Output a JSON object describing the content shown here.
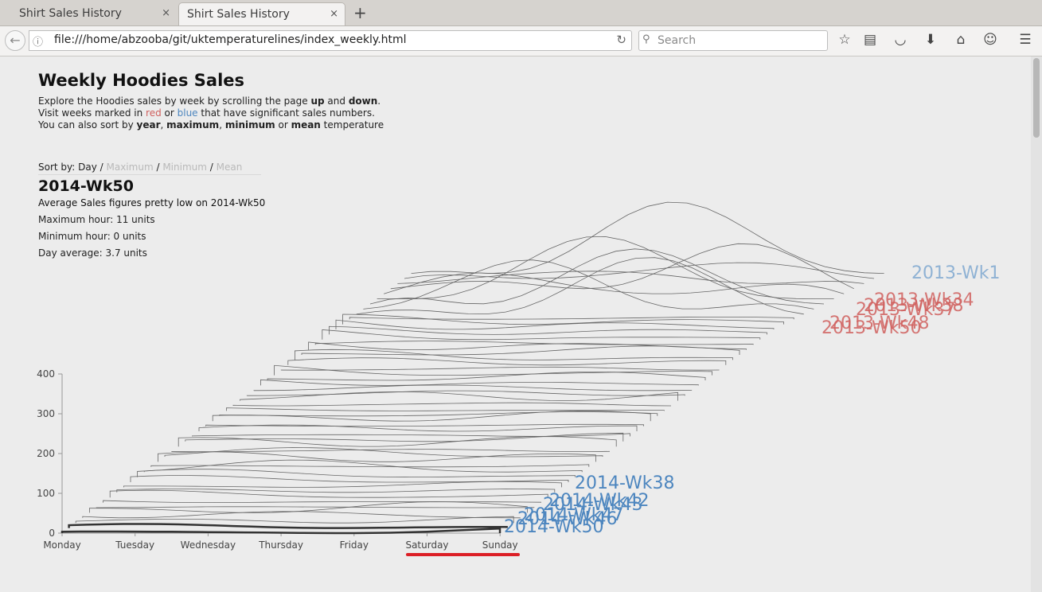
{
  "browser": {
    "tabs": [
      {
        "title": "Shirt Sales History",
        "close": "×"
      },
      {
        "title": "Shirt Sales History",
        "close": "×"
      }
    ],
    "new_tab": "+",
    "back": "←",
    "url": "file:///home/abzooba/git/uktemperaturelines/index_weekly.html",
    "search_placeholder": "Search",
    "icons": [
      "info-icon",
      "reload-icon",
      "search-icon",
      "bookmark-star-icon",
      "reading-list-icon",
      "pocket-icon",
      "download-icon",
      "home-icon",
      "smiley-icon",
      "menu-icon"
    ]
  },
  "page": {
    "title": "Weekly Hoodies Sales",
    "intro": {
      "l1_a": "Explore the Hoodies sales by week by scrolling the page ",
      "l1_b": "up",
      "l1_c": " and ",
      "l1_d": "down",
      "l1_e": ".",
      "l2_a": "Visit weeks marked in ",
      "l2_red": "red",
      "l2_b": " or ",
      "l2_blue": "blue",
      "l2_c": " that have significant sales numbers.",
      "l3_a": "You can also sort by ",
      "l3_year": "year",
      "l3_b": ", ",
      "l3_max": "maximum",
      "l3_c": ", ",
      "l3_min": "minimum",
      "l3_d": " or ",
      "l3_mean": "mean",
      "l3_e": " temperature"
    },
    "sort": {
      "label": "Sort by: ",
      "options": [
        "Day",
        "Maximum",
        "Minimum",
        "Mean"
      ],
      "active": "Day",
      "sep": " / "
    },
    "selected_week": {
      "title": "2014-Wk50",
      "description": "Average Sales figures pretty low on 2014-Wk50",
      "max": "Maximum hour: 11 units",
      "min": "Minimum hour: 0 units",
      "avg": "Day average: 3.7 units"
    },
    "colors": {
      "red": "#d0605e",
      "blue": "#4d86bf",
      "line": "#555555",
      "highlight": "#dc1f26"
    }
  },
  "chart_data": {
    "type": "line",
    "title": "",
    "xlabel": "",
    "ylabel": "",
    "categories": [
      "Monday",
      "Tuesday",
      "Wednesday",
      "Thursday",
      "Friday",
      "Saturday",
      "Sunday"
    ],
    "y_ticks": [
      0,
      100,
      200,
      300,
      400
    ],
    "ylim": [
      0,
      400
    ],
    "week_labels_red": [
      "2013-Wk34",
      "2013-Wk38",
      "2013-Wk37",
      "2013-Wk48",
      "2013-Wk50"
    ],
    "week_labels_blue_top": [
      "2013-Wk1"
    ],
    "week_labels_blue_bottom": [
      "2014-Wk38",
      "2014-Wk42",
      "2014-Wk43",
      "2014-Wk47",
      "2014-Wk46",
      "2014-Wk50"
    ],
    "series_count": 52,
    "note": ""
  }
}
